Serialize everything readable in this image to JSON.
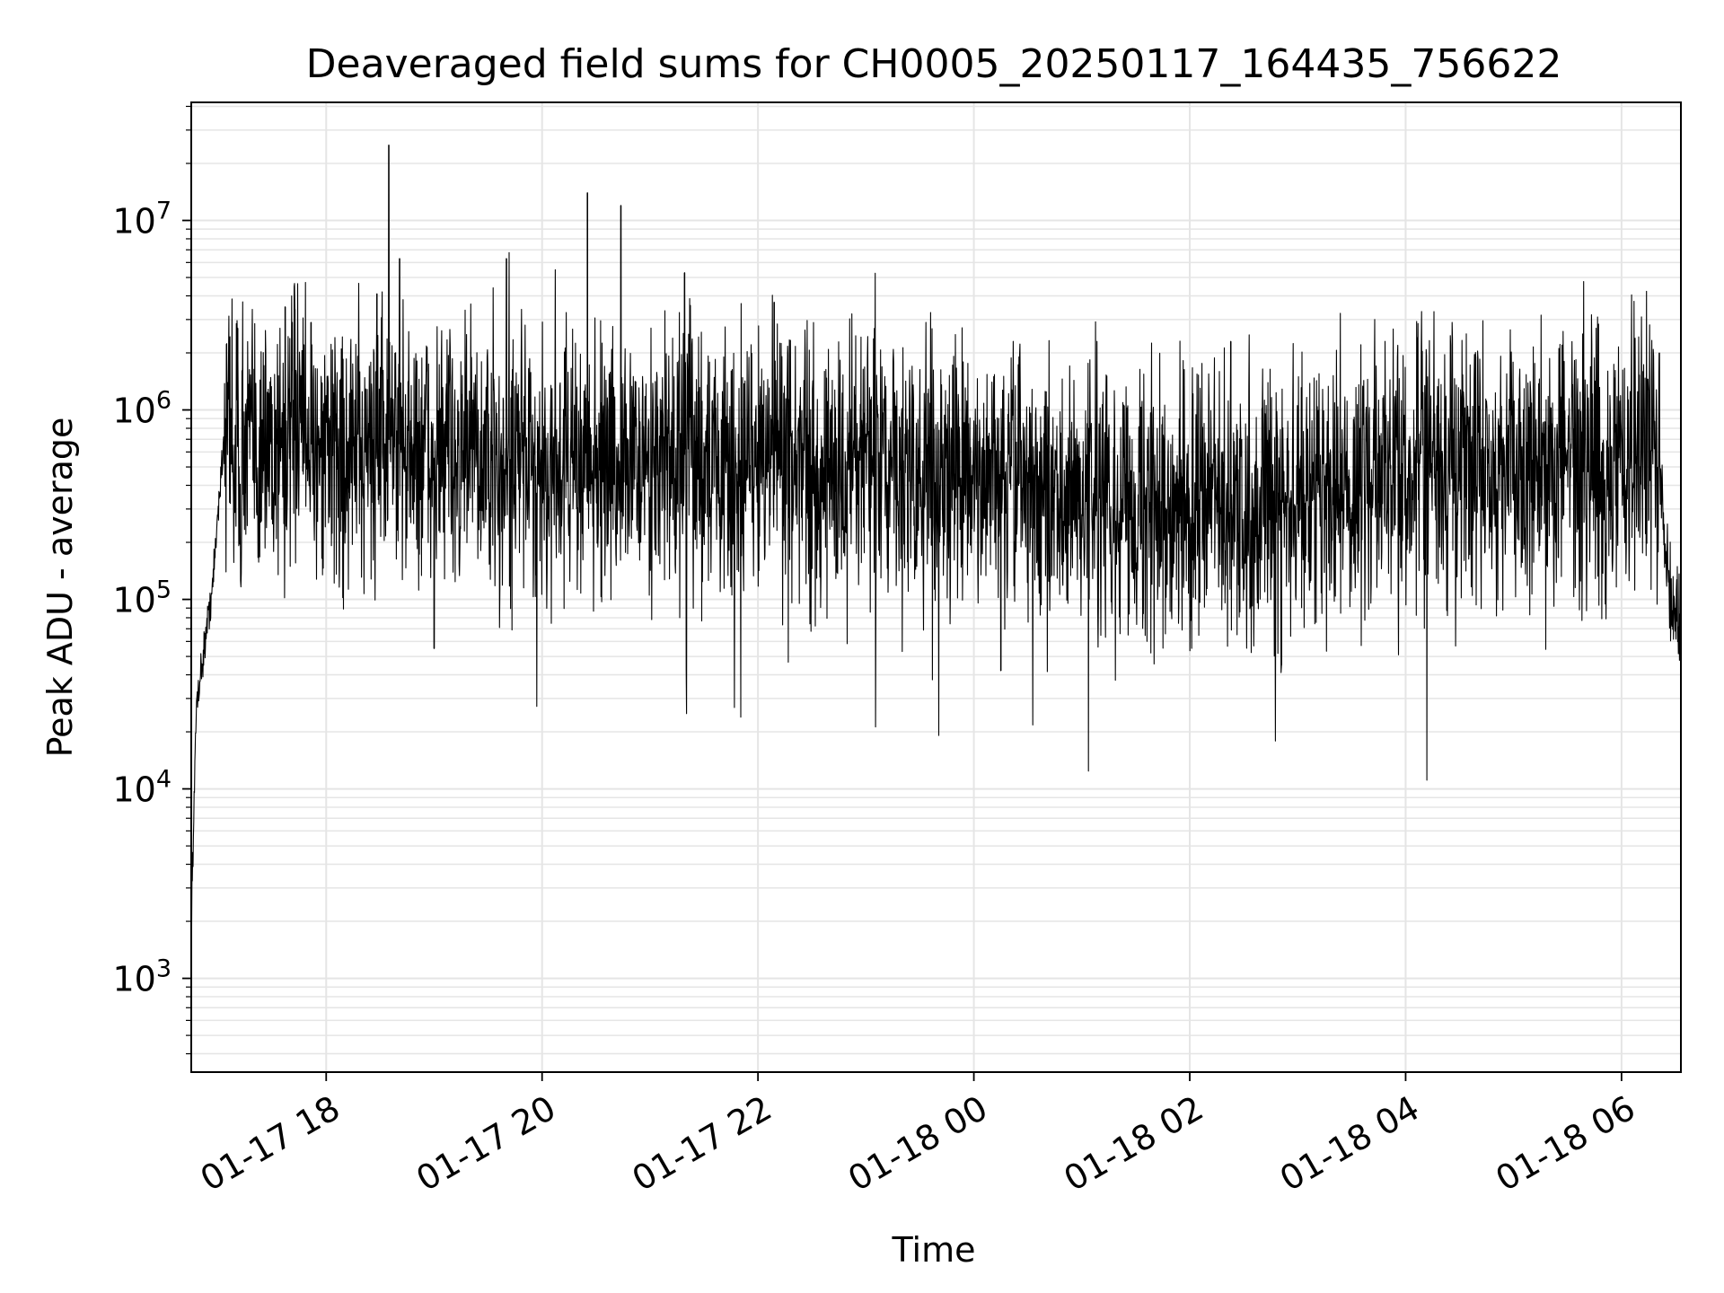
{
  "chart_data": {
    "type": "line",
    "title": "Deaveraged field sums for CH0005_20250117_164435_756622",
    "xlabel": "Time",
    "ylabel": "Peak ADU - average",
    "yscale": "log",
    "ylim": [
      320,
      42000000
    ],
    "x_unit": "hours since 01-17 00:00",
    "xlim": [
      16.75,
      30.55
    ],
    "grid": true,
    "line_color": "#000000",
    "grid_color": "#e5e5e5",
    "x_ticks": [
      {
        "value": 18,
        "label": "01-17 18"
      },
      {
        "value": 20,
        "label": "01-17 20"
      },
      {
        "value": 22,
        "label": "01-17 22"
      },
      {
        "value": 24,
        "label": "01-18 00"
      },
      {
        "value": 26,
        "label": "01-18 02"
      },
      {
        "value": 28,
        "label": "01-18 04"
      },
      {
        "value": 30,
        "label": "01-18 06"
      }
    ],
    "y_ticks": [
      {
        "value": 1000,
        "mantissa": "10",
        "exponent": "3"
      },
      {
        "value": 10000,
        "mantissa": "10",
        "exponent": "4"
      },
      {
        "value": 100000,
        "mantissa": "10",
        "exponent": "5"
      },
      {
        "value": 1000000,
        "mantissa": "10",
        "exponent": "6"
      },
      {
        "value": 10000000,
        "mantissa": "10",
        "exponent": "7"
      }
    ],
    "series": [
      {
        "name": "field sums",
        "x": [
          16.75,
          16.8,
          16.85,
          16.9,
          16.95,
          17.0,
          17.05,
          17.1,
          17.15,
          17.2,
          17.25,
          17.3,
          17.35,
          17.4,
          17.5,
          17.6,
          17.7,
          17.8,
          17.9,
          18.0,
          18.2,
          18.4,
          18.6,
          18.8,
          19.0,
          19.2,
          19.4,
          19.6,
          19.8,
          20.0,
          20.2,
          20.4,
          20.6,
          20.8,
          21.0,
          21.2,
          21.4,
          21.6,
          21.8,
          22.0,
          22.2,
          22.4,
          22.6,
          22.8,
          23.0,
          23.2,
          23.4,
          23.6,
          23.8,
          24.0,
          24.2,
          24.4,
          24.6,
          24.8,
          25.0,
          25.2,
          25.4,
          25.6,
          25.8,
          26.0,
          26.2,
          26.4,
          26.6,
          26.8,
          27.0,
          27.2,
          27.4,
          27.6,
          27.8,
          28.0,
          28.2,
          28.4,
          28.6,
          28.8,
          29.0,
          29.2,
          29.4,
          29.6,
          29.8,
          30.0,
          30.2,
          30.3,
          30.35,
          30.4,
          30.45,
          30.5,
          30.55
        ],
        "y": [
          2000,
          30000,
          45000,
          75000,
          120000,
          300000,
          700000,
          900000,
          700000,
          600000,
          650000,
          700000,
          600000,
          650000,
          700000,
          650000,
          700000,
          600000,
          700000,
          650000,
          600000,
          650000,
          700000,
          600000,
          550000,
          600000,
          550000,
          500000,
          550000,
          500000,
          550000,
          500000,
          520000,
          550000,
          500000,
          550000,
          600000,
          550000,
          500000,
          550000,
          600000,
          520000,
          500000,
          480000,
          500000,
          480000,
          450000,
          470000,
          450000,
          430000,
          420000,
          400000,
          380000,
          350000,
          320000,
          330000,
          350000,
          320000,
          340000,
          330000,
          310000,
          300000,
          320000,
          330000,
          350000,
          380000,
          400000,
          420000,
          450000,
          480000,
          450000,
          470000,
          500000,
          480000,
          500000,
          520000,
          500000,
          520000,
          540000,
          550000,
          600000,
          700000,
          500000,
          200000,
          110000,
          90000,
          80000
        ],
        "spikes": [
          {
            "x": 18.58,
            "y": 25000000
          },
          {
            "x": 20.42,
            "y": 14000000
          },
          {
            "x": 20.73,
            "y": 12000000
          },
          {
            "x": 18.68,
            "y": 6300000
          },
          {
            "x": 19.67,
            "y": 6300000
          },
          {
            "x": 21.32,
            "y": 5300000
          },
          {
            "x": 18.47,
            "y": 4100000
          },
          {
            "x": 22.15,
            "y": 3700000
          },
          {
            "x": 17.62,
            "y": 3500000
          },
          {
            "x": 17.71,
            "y": 3400000
          },
          {
            "x": 17.86,
            "y": 2900000
          },
          {
            "x": 23.08,
            "y": 2700000
          },
          {
            "x": 17.18,
            "y": 2700000
          },
          {
            "x": 26.38,
            "y": 2300000
          },
          {
            "x": 29.45,
            "y": 2200000
          },
          {
            "x": 30.35,
            "y": 2000000
          },
          {
            "x": 24.25,
            "y": 42000
          },
          {
            "x": 26.85,
            "y": 45000
          },
          {
            "x": 19.0,
            "y": 55000
          }
        ]
      }
    ]
  }
}
